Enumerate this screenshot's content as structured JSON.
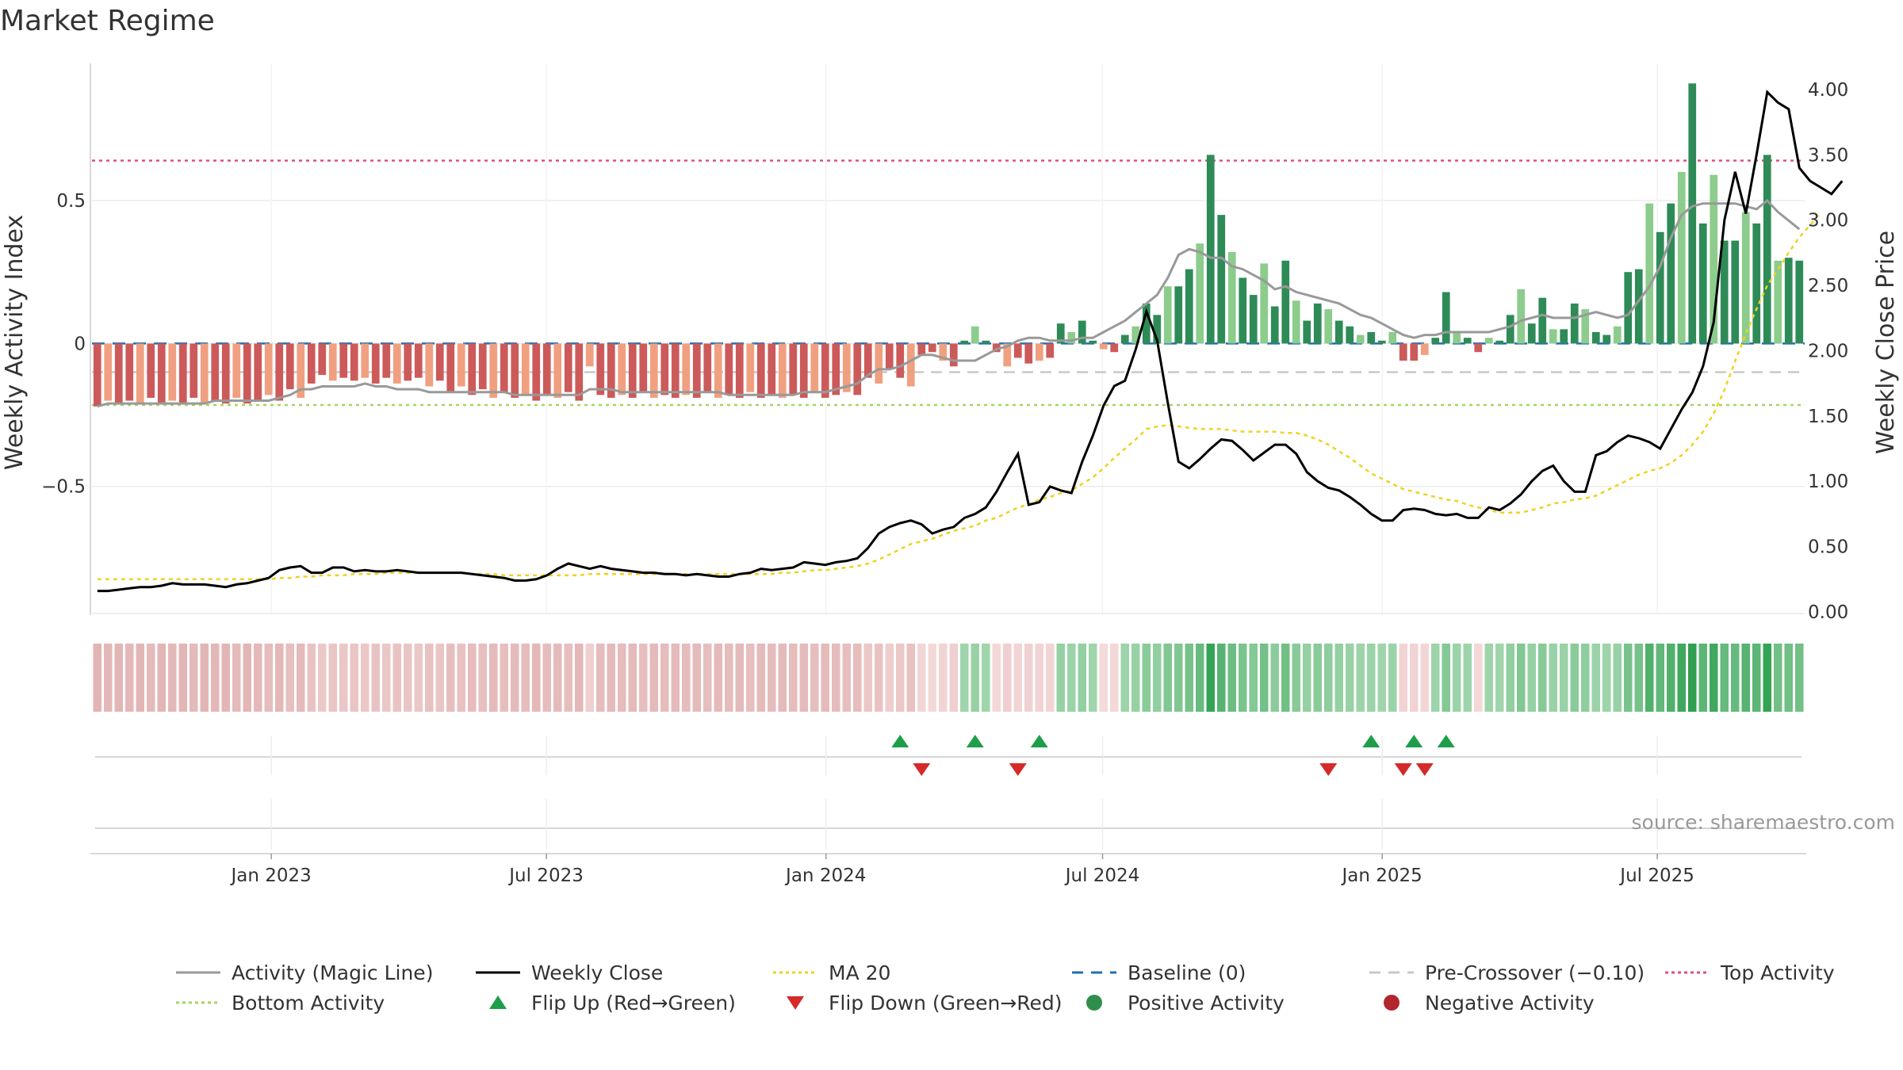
{
  "chart_data": {
    "type": "bar",
    "title": "Market Regime",
    "ylabel": "Weekly Activity Index",
    "y2label": "Weekly Close Price",
    "ylim": [
      -0.95,
      0.98
    ],
    "y2lim": [
      0.0,
      4.2
    ],
    "yticks": [
      {
        "v": 0.5,
        "label": "0.5"
      },
      {
        "v": 0,
        "label": "0"
      },
      {
        "v": -0.5,
        "label": "−0.5"
      }
    ],
    "y2ticks": [
      {
        "v": 4.0,
        "label": "4.00"
      },
      {
        "v": 3.5,
        "label": "3.50"
      },
      {
        "v": 3.0,
        "label": "3.00"
      },
      {
        "v": 2.5,
        "label": "2.50"
      },
      {
        "v": 2.0,
        "label": "2.00"
      },
      {
        "v": 1.5,
        "label": "1.50"
      },
      {
        "v": 1.0,
        "label": "1.00"
      },
      {
        "v": 0.5,
        "label": "0.50"
      },
      {
        "v": 0.0,
        "label": "0.00"
      }
    ],
    "x_start": "2022-09-05",
    "x_end": "2025-10-06",
    "xticks": [
      {
        "date": "2023-01-01",
        "label": "Jan 2023"
      },
      {
        "date": "2023-07-01",
        "label": "Jul 2023"
      },
      {
        "date": "2024-01-01",
        "label": "Jan 2024"
      },
      {
        "date": "2024-07-01",
        "label": "Jul 2024"
      },
      {
        "date": "2025-01-01",
        "label": "Jan 2025"
      },
      {
        "date": "2025-07-01",
        "label": "Jul 2025"
      }
    ],
    "reference_lines": {
      "top_activity": 0.64,
      "bottom_activity": -0.215,
      "pre_crossover": -0.1,
      "baseline": 0
    },
    "series": [
      {
        "name": "Weekly Activity",
        "kind": "bar",
        "values": [
          -0.22,
          -0.2,
          -0.21,
          -0.2,
          -0.21,
          -0.19,
          -0.21,
          -0.2,
          -0.21,
          -0.19,
          -0.21,
          -0.2,
          -0.21,
          -0.19,
          -0.21,
          -0.2,
          -0.18,
          -0.2,
          -0.16,
          -0.19,
          -0.14,
          -0.11,
          -0.13,
          -0.12,
          -0.13,
          -0.12,
          -0.14,
          -0.12,
          -0.14,
          -0.13,
          -0.12,
          -0.15,
          -0.13,
          -0.17,
          -0.15,
          -0.18,
          -0.16,
          -0.19,
          -0.17,
          -0.19,
          -0.18,
          -0.2,
          -0.18,
          -0.19,
          -0.17,
          -0.2,
          -0.08,
          -0.18,
          -0.19,
          -0.18,
          -0.19,
          -0.17,
          -0.19,
          -0.18,
          -0.19,
          -0.18,
          -0.19,
          -0.17,
          -0.19,
          -0.18,
          -0.19,
          -0.17,
          -0.19,
          -0.18,
          -0.19,
          -0.18,
          -0.19,
          -0.17,
          -0.19,
          -0.18,
          -0.17,
          -0.18,
          -0.12,
          -0.14,
          -0.09,
          -0.12,
          -0.15,
          -0.04,
          -0.03,
          -0.06,
          -0.08,
          0.01,
          0.06,
          0.01,
          -0.03,
          -0.08,
          -0.05,
          -0.07,
          -0.06,
          -0.05,
          0.07,
          0.04,
          0.08,
          0.01,
          -0.02,
          -0.03,
          0.03,
          0.06,
          0.14,
          0.1,
          0.2,
          0.2,
          0.26,
          0.35,
          0.66,
          0.45,
          0.32,
          0.23,
          0.17,
          0.28,
          0.13,
          0.29,
          0.15,
          0.08,
          0.14,
          0.12,
          0.08,
          0.06,
          0.03,
          0.04,
          0.01,
          0.04,
          -0.06,
          -0.06,
          -0.04,
          0.02,
          0.18,
          0.04,
          0.02,
          -0.03,
          0.02,
          0.01,
          0.1,
          0.19,
          0.07,
          0.16,
          0.05,
          0.05,
          0.14,
          0.12,
          0.04,
          0.03,
          0.06,
          0.25,
          0.26,
          0.49,
          0.39,
          0.49,
          0.6,
          0.91,
          0.42,
          0.59,
          0.36,
          0.36,
          0.46,
          0.42,
          0.66,
          0.29,
          0.3,
          0.29
        ]
      },
      {
        "name": "Activity (Magic Line)",
        "kind": "line",
        "values": [
          -0.22,
          -0.21,
          -0.21,
          -0.21,
          -0.21,
          -0.21,
          -0.21,
          -0.21,
          -0.21,
          -0.21,
          -0.21,
          -0.2,
          -0.2,
          -0.2,
          -0.2,
          -0.2,
          -0.2,
          -0.19,
          -0.18,
          -0.16,
          -0.16,
          -0.15,
          -0.15,
          -0.15,
          -0.15,
          -0.14,
          -0.15,
          -0.15,
          -0.16,
          -0.16,
          -0.16,
          -0.17,
          -0.17,
          -0.17,
          -0.17,
          -0.17,
          -0.17,
          -0.17,
          -0.17,
          -0.18,
          -0.18,
          -0.18,
          -0.18,
          -0.18,
          -0.18,
          -0.18,
          -0.16,
          -0.16,
          -0.16,
          -0.17,
          -0.17,
          -0.17,
          -0.17,
          -0.17,
          -0.17,
          -0.17,
          -0.17,
          -0.17,
          -0.17,
          -0.18,
          -0.18,
          -0.18,
          -0.18,
          -0.18,
          -0.18,
          -0.18,
          -0.17,
          -0.17,
          -0.17,
          -0.16,
          -0.15,
          -0.14,
          -0.11,
          -0.09,
          -0.09,
          -0.08,
          -0.06,
          -0.04,
          -0.04,
          -0.05,
          -0.06,
          -0.06,
          -0.06,
          -0.04,
          -0.02,
          -0.01,
          0.01,
          0.02,
          0.02,
          0.01,
          0.01,
          0.01,
          0.02,
          0.02,
          0.04,
          0.06,
          0.08,
          0.11,
          0.14,
          0.17,
          0.23,
          0.31,
          0.33,
          0.32,
          0.3,
          0.3,
          0.27,
          0.26,
          0.24,
          0.22,
          0.19,
          0.2,
          0.18,
          0.17,
          0.16,
          0.15,
          0.14,
          0.12,
          0.1,
          0.09,
          0.07,
          0.05,
          0.03,
          0.02,
          0.03,
          0.03,
          0.04,
          0.04,
          0.04,
          0.04,
          0.04,
          0.05,
          0.06,
          0.08,
          0.09,
          0.1,
          0.09,
          0.09,
          0.09,
          0.1,
          0.11,
          0.1,
          0.09,
          0.1,
          0.15,
          0.2,
          0.27,
          0.37,
          0.45,
          0.48,
          0.49,
          0.49,
          0.49,
          0.49,
          0.48,
          0.47,
          0.5,
          0.46,
          0.43,
          0.4
        ]
      },
      {
        "name": "Weekly Close",
        "kind": "line",
        "axis": "right",
        "values": [
          0.16,
          0.16,
          0.17,
          0.18,
          0.19,
          0.19,
          0.2,
          0.22,
          0.21,
          0.21,
          0.21,
          0.2,
          0.19,
          0.21,
          0.22,
          0.24,
          0.26,
          0.32,
          0.34,
          0.35,
          0.3,
          0.3,
          0.34,
          0.34,
          0.31,
          0.32,
          0.31,
          0.31,
          0.32,
          0.31,
          0.3,
          0.3,
          0.3,
          0.3,
          0.3,
          0.29,
          0.28,
          0.27,
          0.26,
          0.24,
          0.24,
          0.25,
          0.28,
          0.33,
          0.37,
          0.35,
          0.33,
          0.35,
          0.33,
          0.32,
          0.31,
          0.3,
          0.3,
          0.29,
          0.29,
          0.28,
          0.29,
          0.28,
          0.27,
          0.27,
          0.29,
          0.3,
          0.33,
          0.32,
          0.33,
          0.34,
          0.38,
          0.37,
          0.36,
          0.38,
          0.39,
          0.41,
          0.49,
          0.6,
          0.65,
          0.68,
          0.7,
          0.67,
          0.6,
          0.63,
          0.65,
          0.72,
          0.75,
          0.8,
          0.92,
          1.07,
          1.21,
          0.82,
          0.84,
          0.96,
          0.93,
          0.91,
          1.15,
          1.35,
          1.58,
          1.73,
          1.77,
          2.01,
          2.3,
          2.08,
          1.6,
          1.15,
          1.1,
          1.17,
          1.25,
          1.32,
          1.31,
          1.24,
          1.16,
          1.22,
          1.28,
          1.28,
          1.21,
          1.07,
          1.0,
          0.95,
          0.93,
          0.88,
          0.82,
          0.75,
          0.7,
          0.7,
          0.78,
          0.79,
          0.78,
          0.75,
          0.74,
          0.75,
          0.72,
          0.72,
          0.8,
          0.78,
          0.83,
          0.9,
          1.0,
          1.08,
          1.12,
          1.0,
          0.92,
          0.92,
          1.2,
          1.23,
          1.3,
          1.35,
          1.33,
          1.3,
          1.25,
          1.4,
          1.55,
          1.68,
          1.88,
          2.22,
          3.0,
          3.37,
          3.05,
          3.5,
          3.98,
          3.9,
          3.85,
          3.4,
          3.3,
          3.25,
          3.2,
          3.3
        ]
      },
      {
        "name": "MA 20",
        "kind": "line",
        "axis": "right",
        "values": [
          0.25,
          0.25,
          0.25,
          0.25,
          0.25,
          0.25,
          0.25,
          0.25,
          0.25,
          0.25,
          0.25,
          0.25,
          0.25,
          0.25,
          0.25,
          0.25,
          0.25,
          0.26,
          0.26,
          0.27,
          0.27,
          0.28,
          0.28,
          0.28,
          0.29,
          0.29,
          0.29,
          0.3,
          0.3,
          0.3,
          0.3,
          0.3,
          0.3,
          0.3,
          0.3,
          0.29,
          0.29,
          0.29,
          0.28,
          0.28,
          0.28,
          0.28,
          0.28,
          0.28,
          0.28,
          0.28,
          0.29,
          0.29,
          0.29,
          0.29,
          0.29,
          0.29,
          0.29,
          0.29,
          0.29,
          0.29,
          0.29,
          0.29,
          0.29,
          0.29,
          0.29,
          0.29,
          0.29,
          0.29,
          0.3,
          0.3,
          0.31,
          0.32,
          0.32,
          0.33,
          0.34,
          0.35,
          0.37,
          0.4,
          0.44,
          0.48,
          0.52,
          0.54,
          0.56,
          0.59,
          0.62,
          0.64,
          0.66,
          0.7,
          0.72,
          0.76,
          0.8,
          0.82,
          0.86,
          0.88,
          0.91,
          0.93,
          0.98,
          1.03,
          1.1,
          1.18,
          1.25,
          1.32,
          1.4,
          1.42,
          1.43,
          1.42,
          1.41,
          1.4,
          1.4,
          1.4,
          1.39,
          1.38,
          1.38,
          1.38,
          1.38,
          1.37,
          1.37,
          1.35,
          1.32,
          1.28,
          1.23,
          1.18,
          1.12,
          1.06,
          1.02,
          0.98,
          0.94,
          0.92,
          0.9,
          0.88,
          0.86,
          0.85,
          0.82,
          0.8,
          0.78,
          0.76,
          0.76,
          0.76,
          0.78,
          0.8,
          0.83,
          0.84,
          0.86,
          0.87,
          0.89,
          0.93,
          0.97,
          1.01,
          1.05,
          1.08,
          1.1,
          1.14,
          1.2,
          1.28,
          1.38,
          1.52,
          1.7,
          1.92,
          2.13,
          2.32,
          2.5,
          2.62,
          2.75,
          2.87,
          2.96,
          3.06
        ]
      }
    ],
    "flip_up_weeks": [
      75,
      82,
      88,
      119,
      123,
      126
    ],
    "flip_down_weeks": [
      77,
      86,
      115,
      122,
      124
    ],
    "source": "source: sharemaestro.com",
    "legend_position": "bottom",
    "legend": [
      {
        "label": "Activity (Magic Line)",
        "icon": "solid-line",
        "color": "#999999"
      },
      {
        "label": "Weekly Close",
        "icon": "solid-line",
        "color": "#000000"
      },
      {
        "label": "MA 20",
        "icon": "dotted-line",
        "color": "#f1d21e"
      },
      {
        "label": "Baseline (0)",
        "icon": "dashed-line",
        "color": "#1f6fb4"
      },
      {
        "label": "Pre-Crossover (−0.10)",
        "icon": "dashed-line",
        "color": "#c8c8c8"
      },
      {
        "label": "Top Activity",
        "icon": "dotted-line",
        "color": "#e0507a"
      },
      {
        "label": "Bottom Activity",
        "icon": "dotted-line",
        "color": "#a5d65c"
      },
      {
        "label": "Flip Up (Red→Green)",
        "icon": "triangle-up",
        "color": "#1e9e4a"
      },
      {
        "label": "Flip Down (Green→Red)",
        "icon": "triangle-down",
        "color": "#d42a2a"
      },
      {
        "label": "Positive Activity",
        "icon": "circle",
        "color": "#2f8f4a"
      },
      {
        "label": "Negative Activity",
        "icon": "circle",
        "color": "#b3262d"
      }
    ],
    "colors": {
      "pos_dark": "#2e8b57",
      "pos_light": "#8ccc8c",
      "neg_dark": "#cc5a5a",
      "neg_light": "#f0a080",
      "grid": "#ececec",
      "axis": "#cccccc"
    }
  }
}
